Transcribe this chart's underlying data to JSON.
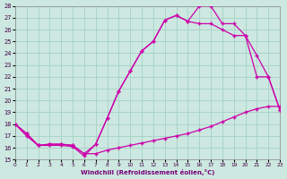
{
  "bg_color": "#cce8e0",
  "grid_color": "#aad4c8",
  "line_color": "#cc00aa",
  "xlim": [
    0,
    23
  ],
  "ylim": [
    15,
    28
  ],
  "xticks": [
    0,
    1,
    2,
    3,
    4,
    5,
    6,
    7,
    8,
    9,
    10,
    11,
    12,
    13,
    14,
    15,
    16,
    17,
    18,
    19,
    20,
    21,
    22,
    23
  ],
  "yticks": [
    15,
    16,
    17,
    18,
    19,
    20,
    21,
    22,
    23,
    24,
    25,
    26,
    27,
    28
  ],
  "xlabel": "Windchill (Refroidissement éolien,°C)",
  "curve1_x": [
    0,
    1,
    2,
    3,
    4,
    5,
    6,
    7,
    8,
    9,
    10,
    11,
    12,
    13,
    14,
    15,
    16,
    17,
    18,
    19,
    20,
    21,
    22,
    23
  ],
  "curve1_y": [
    18.0,
    17.0,
    16.2,
    16.2,
    16.2,
    16.1,
    15.3,
    16.3,
    18.5,
    20.8,
    22.5,
    24.2,
    25.0,
    26.8,
    27.2,
    26.7,
    28.0,
    28.0,
    26.5,
    26.5,
    25.5,
    23.8,
    22.0,
    19.2
  ],
  "curve2_x": [
    0,
    1,
    2,
    3,
    4,
    5,
    6,
    7,
    8,
    9,
    10,
    11,
    12,
    13,
    14,
    15,
    16,
    17,
    18,
    19,
    20,
    21,
    22,
    23
  ],
  "curve2_y": [
    18.0,
    17.2,
    16.2,
    16.3,
    16.3,
    16.2,
    15.5,
    15.5,
    15.8,
    16.0,
    16.2,
    16.4,
    16.6,
    16.8,
    17.0,
    17.2,
    17.5,
    17.8,
    18.2,
    18.6,
    19.0,
    19.3,
    19.5,
    19.5
  ],
  "curve3_x": [
    0,
    1,
    2,
    3,
    4,
    5,
    6,
    7,
    8,
    9,
    10,
    11,
    12,
    13,
    14,
    15,
    16,
    17,
    18,
    19,
    20,
    21,
    22,
    23
  ],
  "curve3_y": [
    18.0,
    17.2,
    16.2,
    16.3,
    16.3,
    16.2,
    15.5,
    16.3,
    18.5,
    20.8,
    22.5,
    24.2,
    25.0,
    26.8,
    27.2,
    26.7,
    26.5,
    26.5,
    26.0,
    25.5,
    25.5,
    22.0,
    22.0,
    19.2
  ]
}
